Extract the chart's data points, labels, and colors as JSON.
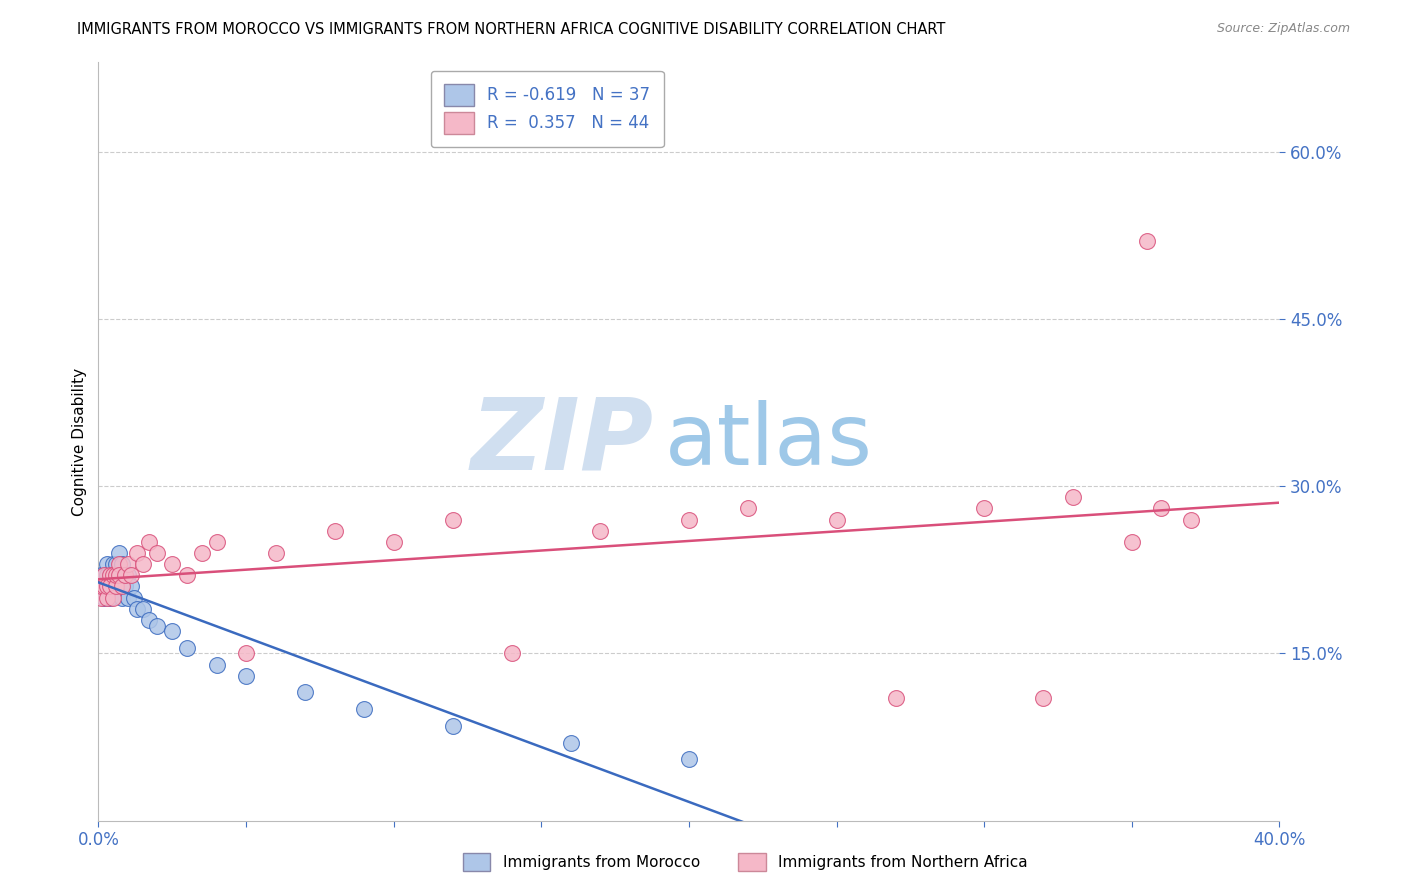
{
  "title": "IMMIGRANTS FROM MOROCCO VS IMMIGRANTS FROM NORTHERN AFRICA COGNITIVE DISABILITY CORRELATION CHART",
  "source": "Source: ZipAtlas.com",
  "xlabel_blue": "Immigrants from Morocco",
  "xlabel_pink": "Immigrants from Northern Africa",
  "ylabel": "Cognitive Disability",
  "R_blue": -0.619,
  "N_blue": 37,
  "R_pink": 0.357,
  "N_pink": 44,
  "color_blue": "#aec6e8",
  "color_pink": "#f5b8c8",
  "line_blue": "#3a6abf",
  "line_pink": "#d94f7a",
  "tick_color": "#4472c4",
  "xlim": [
    0.0,
    0.4
  ],
  "ylim": [
    0.0,
    0.68
  ],
  "yticks": [
    0.15,
    0.3,
    0.45,
    0.6
  ],
  "ytick_labels": [
    "15.0%",
    "30.0%",
    "45.0%",
    "60.0%"
  ],
  "xtick_labels": [
    "0.0%",
    "40.0%"
  ],
  "background_color": "#ffffff",
  "grid_color": "#cccccc",
  "title_fontsize": 10.5,
  "source_fontsize": 9,
  "tick_fontsize": 12,
  "legend_fontsize": 12,
  "blue_x": [
    0.001,
    0.001,
    0.002,
    0.002,
    0.003,
    0.003,
    0.003,
    0.004,
    0.004,
    0.004,
    0.005,
    0.005,
    0.005,
    0.006,
    0.006,
    0.007,
    0.007,
    0.008,
    0.008,
    0.009,
    0.01,
    0.01,
    0.011,
    0.012,
    0.013,
    0.015,
    0.017,
    0.02,
    0.025,
    0.03,
    0.04,
    0.05,
    0.07,
    0.09,
    0.12,
    0.16,
    0.2
  ],
  "blue_y": [
    0.21,
    0.22,
    0.22,
    0.2,
    0.23,
    0.22,
    0.21,
    0.22,
    0.2,
    0.22,
    0.21,
    0.23,
    0.22,
    0.21,
    0.23,
    0.22,
    0.24,
    0.2,
    0.23,
    0.21,
    0.2,
    0.22,
    0.21,
    0.2,
    0.19,
    0.19,
    0.18,
    0.175,
    0.17,
    0.155,
    0.14,
    0.13,
    0.115,
    0.1,
    0.085,
    0.07,
    0.055
  ],
  "pink_x": [
    0.001,
    0.001,
    0.002,
    0.002,
    0.003,
    0.003,
    0.004,
    0.004,
    0.005,
    0.005,
    0.006,
    0.006,
    0.007,
    0.007,
    0.008,
    0.009,
    0.01,
    0.011,
    0.013,
    0.015,
    0.017,
    0.02,
    0.025,
    0.03,
    0.035,
    0.04,
    0.05,
    0.06,
    0.08,
    0.1,
    0.12,
    0.14,
    0.17,
    0.2,
    0.22,
    0.25,
    0.27,
    0.3,
    0.32,
    0.33,
    0.35,
    0.36,
    0.37,
    0.355
  ],
  "pink_y": [
    0.2,
    0.21,
    0.21,
    0.22,
    0.2,
    0.21,
    0.22,
    0.21,
    0.2,
    0.22,
    0.21,
    0.22,
    0.23,
    0.22,
    0.21,
    0.22,
    0.23,
    0.22,
    0.24,
    0.23,
    0.25,
    0.24,
    0.23,
    0.22,
    0.24,
    0.25,
    0.15,
    0.24,
    0.26,
    0.25,
    0.27,
    0.15,
    0.26,
    0.27,
    0.28,
    0.27,
    0.11,
    0.28,
    0.11,
    0.29,
    0.25,
    0.28,
    0.27,
    0.52
  ],
  "watermark_zip": "ZIP",
  "watermark_atlas": "atlas",
  "wm_zip_color": "#d0dff0",
  "wm_atlas_color": "#9ec8e8"
}
